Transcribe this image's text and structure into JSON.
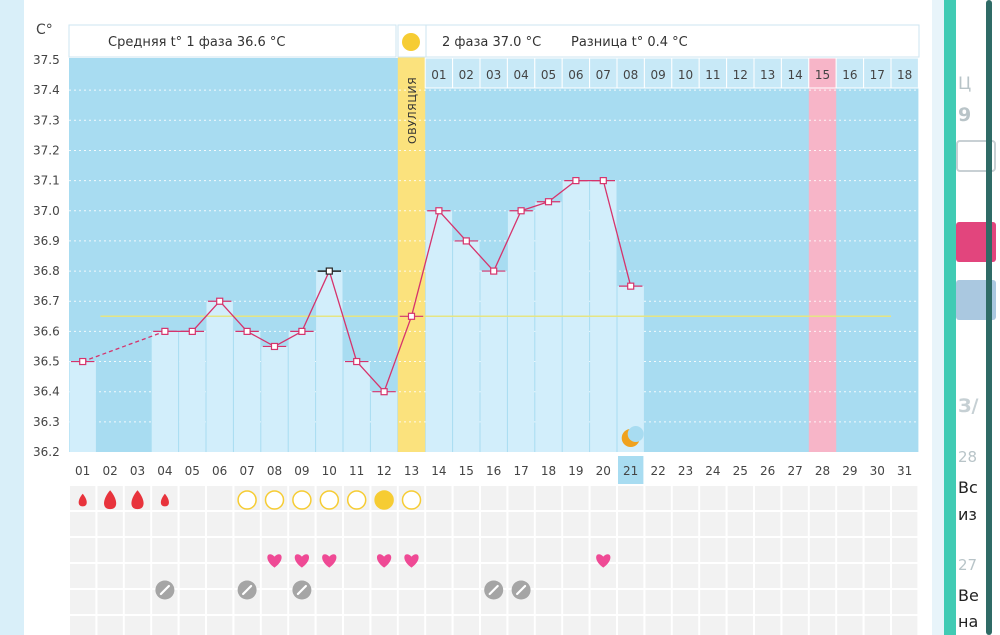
{
  "chart_data": {
    "type": "line",
    "ylabel": "C°",
    "ylim": [
      36.2,
      37.5
    ],
    "ytick_labels": [
      "37.5",
      "37.4",
      "37.3",
      "37.2",
      "37.1",
      "37.0",
      "36.9",
      "36.8",
      "36.7",
      "36.6",
      "36.5",
      "36.4",
      "36.3",
      "36.2"
    ],
    "days": [
      "01",
      "02",
      "03",
      "04",
      "05",
      "06",
      "07",
      "08",
      "09",
      "10",
      "11",
      "12",
      "13",
      "14",
      "15",
      "16",
      "17",
      "18",
      "19",
      "20",
      "21",
      "22",
      "23",
      "24",
      "25",
      "26",
      "27",
      "28",
      "29",
      "30",
      "31"
    ],
    "phase2_days": [
      "01",
      "02",
      "03",
      "04",
      "05",
      "06",
      "07",
      "08",
      "09",
      "10",
      "11",
      "12",
      "13",
      "14",
      "15",
      "16",
      "17",
      "18"
    ],
    "phase1_avg_label": "Средняя t° 1 фаза 36.6 °С",
    "phase2_avg_label": "2 фаза 37.0 °С",
    "difference_label": "Разница t° 0.4 °С",
    "ovulation_label": "ОВУЛЯЦИЯ",
    "ovulation_day": 13,
    "average_line": 36.65,
    "highlight_day": 28,
    "current_day": 21,
    "temperatures": [
      {
        "day": 1,
        "value": 36.5
      },
      {
        "day": 4,
        "value": 36.6
      },
      {
        "day": 5,
        "value": 36.6
      },
      {
        "day": 6,
        "value": 36.7
      },
      {
        "day": 7,
        "value": 36.6
      },
      {
        "day": 8,
        "value": 36.55
      },
      {
        "day": 9,
        "value": 36.6
      },
      {
        "day": 10,
        "value": 36.8
      },
      {
        "day": 11,
        "value": 36.5
      },
      {
        "day": 12,
        "value": 36.4
      },
      {
        "day": 13,
        "value": 36.65
      },
      {
        "day": 14,
        "value": 37.0
      },
      {
        "day": 15,
        "value": 36.9
      },
      {
        "day": 16,
        "value": 36.8
      },
      {
        "day": 17,
        "value": 37.0
      },
      {
        "day": 18,
        "value": 37.03
      },
      {
        "day": 19,
        "value": 37.1
      },
      {
        "day": 20,
        "value": 37.1
      },
      {
        "day": 21,
        "value": 36.75
      }
    ],
    "dashed_segment": [
      1,
      4
    ],
    "period_drops": [
      {
        "day": 1,
        "size": "small"
      },
      {
        "day": 2,
        "size": "large"
      },
      {
        "day": 3,
        "size": "large"
      },
      {
        "day": 4,
        "size": "small"
      }
    ],
    "egg_circles": [
      {
        "day": 7,
        "filled": false
      },
      {
        "day": 8,
        "filled": false
      },
      {
        "day": 9,
        "filled": false
      },
      {
        "day": 10,
        "filled": false
      },
      {
        "day": 11,
        "filled": false
      },
      {
        "day": 12,
        "filled": true
      },
      {
        "day": 13,
        "filled": false
      }
    ],
    "hearts": [
      8,
      9,
      10,
      12,
      13,
      20
    ],
    "pills": [
      4,
      7,
      9,
      16,
      17
    ],
    "moon_day": 21
  },
  "colors": {
    "sky": "#a8dcf1",
    "bar": "#d2eefb",
    "line": "#d6336c",
    "ovulation": "#fbe27d",
    "highlight": "#f7b5c8",
    "average": "#e5e584",
    "drop": "#e8333c",
    "heart": "#ef4a95",
    "egg": "#f6cc33",
    "pill": "#a5a5a5",
    "moon": "#f0a21e"
  },
  "side_panel": {
    "label_a": "Ц",
    "label_b": "9",
    "label_c": "З/",
    "label_d": "28",
    "label_e": "Вс",
    "label_f": "из",
    "label_g": "27",
    "label_h": "Ве",
    "label_i": "на"
  }
}
